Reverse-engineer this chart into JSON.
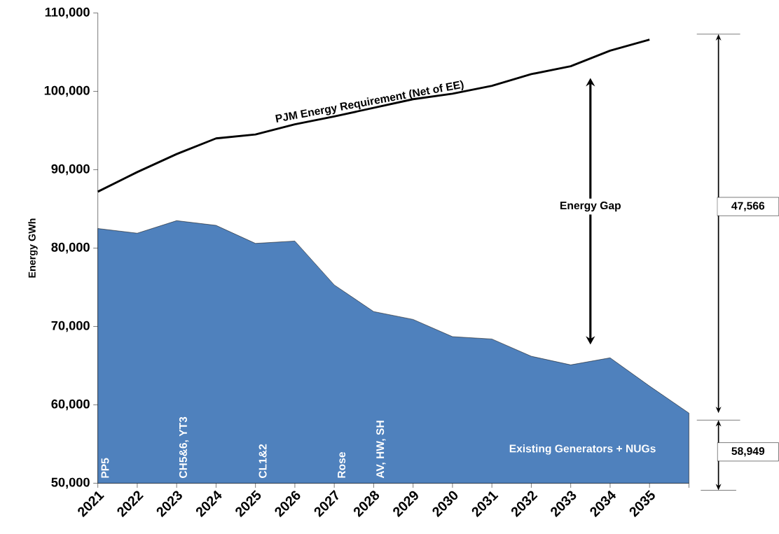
{
  "chart_data": {
    "type": "area",
    "ylabel": "Energy GWh",
    "x": [
      2021,
      2022,
      2023,
      2024,
      2025,
      2026,
      2027,
      2028,
      2029,
      2030,
      2031,
      2032,
      2033,
      2034,
      2035,
      2036
    ],
    "series": [
      {
        "color": "#4f81bd",
        "values": [
          82500,
          81900,
          83500,
          82900,
          80600,
          80900,
          75300,
          71900,
          70900,
          68700,
          68400,
          66200,
          65100,
          66000,
          62400,
          58949
        ]
      },
      {
        "type": "line",
        "color": "#000000",
        "x": [
          2021,
          2022,
          2023,
          2024,
          2025,
          2026,
          2027,
          2028,
          2029,
          2030,
          2031,
          2032,
          2033,
          2034,
          2035
        ],
        "values": [
          87200,
          89700,
          92000,
          94000,
          94500,
          95800,
          96800,
          97900,
          99000,
          99700,
          100700,
          102200,
          103200,
          105200,
          106600
        ]
      }
    ],
    "xlim": [
      2021,
      2036
    ],
    "ylim": [
      50000,
      110000
    ],
    "xticks": [
      2021,
      2022,
      2023,
      2024,
      2025,
      2026,
      2027,
      2028,
      2029,
      2030,
      2031,
      2032,
      2033,
      2034,
      2035,
      {
        "value": 2036,
        "label": null
      }
    ],
    "yticks": [
      {
        "value": 50000,
        "label": "50,000"
      },
      {
        "value": 60000,
        "label": "60,000"
      },
      {
        "value": 70000,
        "label": "70,000"
      },
      {
        "value": 80000,
        "label": "80,000"
      },
      {
        "value": 90000,
        "label": "90,000"
      },
      {
        "value": 100000,
        "label": "100,000"
      },
      {
        "value": 110000,
        "label": "110,000"
      }
    ],
    "annotations": [
      "PJM Energy Requirement (Net of EE)",
      "Energy Gap",
      "Existing Generators + NUGs",
      "47,566",
      "58,949",
      {
        "text": "PP5",
        "x": 2021,
        "y": 50000
      },
      {
        "text": "CH5&6, YT3",
        "x": 2023,
        "y": 50000
      },
      {
        "text": "CL1&2",
        "x": 2025,
        "y": 50000
      },
      {
        "text": "Rose",
        "x": 2027,
        "y": 50000
      },
      {
        "text": "AV, HW, SH",
        "x": 2028,
        "y": 50000
      }
    ]
  }
}
